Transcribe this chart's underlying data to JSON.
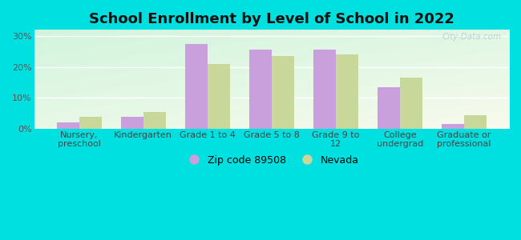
{
  "title": "School Enrollment by Level of School in 2022",
  "categories": [
    "Nursery,\npreschool",
    "Kindergarten",
    "Grade 1 to 4",
    "Grade 5 to 8",
    "Grade 9 to\n12",
    "College\nundergrad",
    "Graduate or\nprofessional"
  ],
  "zip_values": [
    2.0,
    4.0,
    27.5,
    25.5,
    25.5,
    13.5,
    1.5
  ],
  "nevada_values": [
    4.0,
    5.5,
    21.0,
    23.5,
    24.0,
    16.5,
    4.5
  ],
  "zip_color": "#c9a0dc",
  "nevada_color": "#c8d89a",
  "zip_label": "Zip code 89508",
  "nevada_label": "Nevada",
  "ylim": [
    0,
    32
  ],
  "yticks": [
    0,
    10,
    20,
    30
  ],
  "yticklabels": [
    "0%",
    "10%",
    "20%",
    "30%"
  ],
  "background_outer": "#00e0e0",
  "title_fontsize": 13,
  "tick_fontsize": 8,
  "legend_fontsize": 9,
  "bar_width": 0.35,
  "watermark": "City-Data.com"
}
